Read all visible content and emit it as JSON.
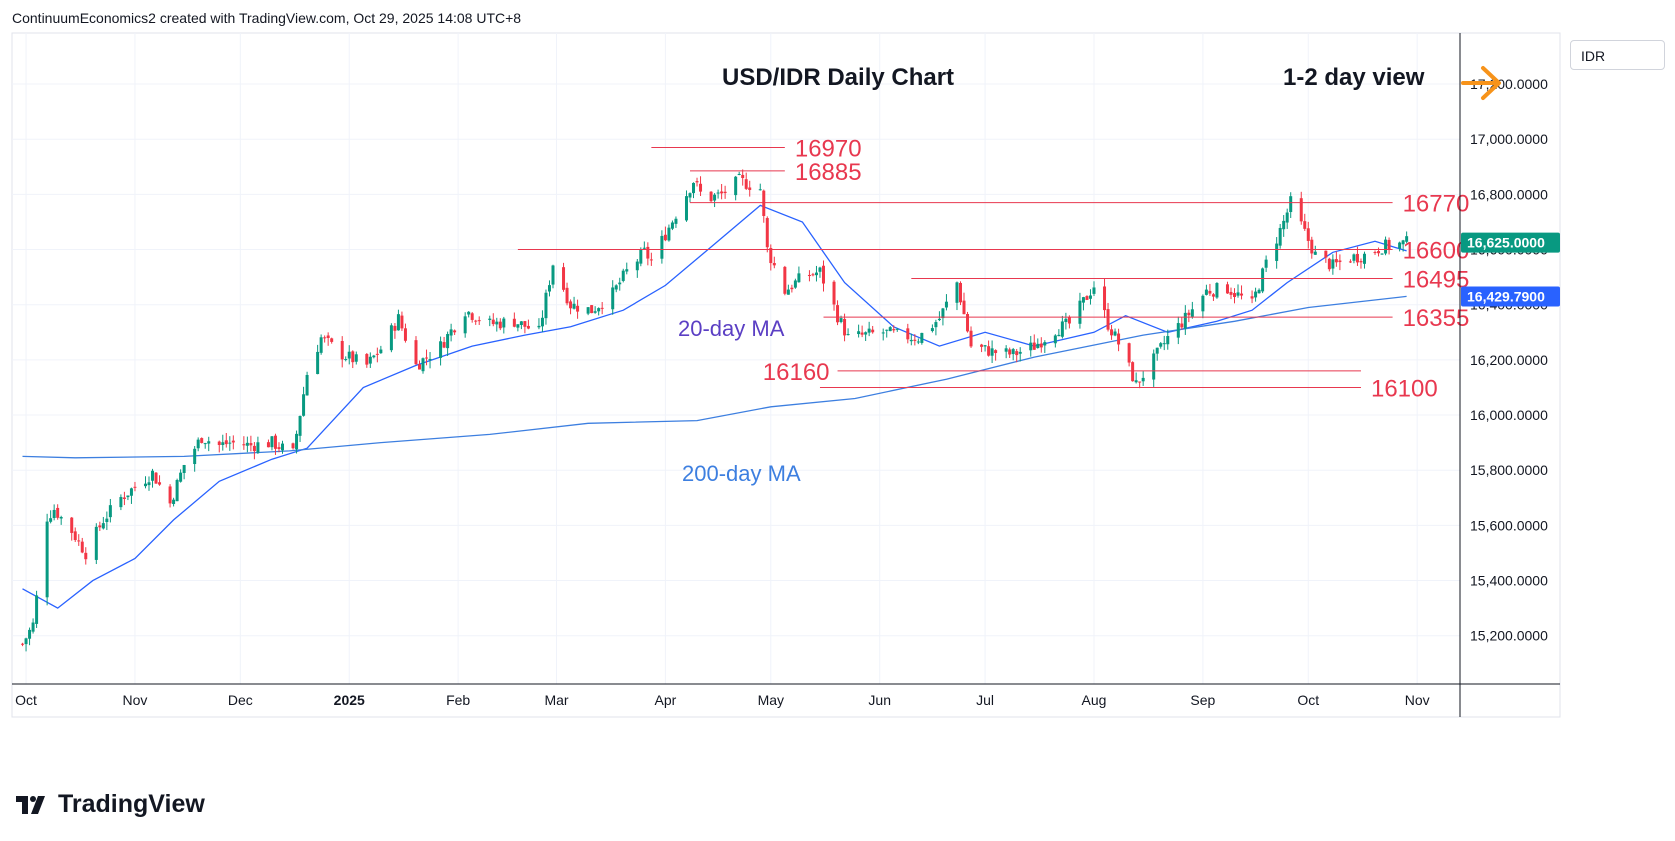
{
  "header": {
    "credit": "ContinuumEconomics2 created with TradingView.com, Oct 29, 2025 14:08 UTC+8"
  },
  "toolbar": {
    "currency": "IDR"
  },
  "logo": {
    "name": "TradingView",
    "icon": "tradingview-logo-icon"
  },
  "colors": {
    "up": "#089981",
    "down": "#f23645",
    "level": "#e8384f",
    "ma20": "#2962ff",
    "ma200": "#3d7fe0",
    "ma20_label": "#5b3fc4",
    "arrow": "#f7931a",
    "badge_current": "#089981",
    "badge_ma": "#2962ff"
  },
  "chart_data": {
    "type": "candlestick",
    "title": "USD/IDR Daily Chart",
    "view_note": "1-2 day view",
    "arrow_icon": "arrow-right-icon",
    "y_ticks": [
      15200,
      15400,
      15600,
      15800,
      16000,
      16200,
      16400,
      16600,
      16800,
      17000,
      17200
    ],
    "y_tick_labels": [
      "15,200.0000",
      "15,400.0000",
      "15,600.0000",
      "15,800.0000",
      "16,000.0000",
      "16,200.0000",
      "16,400.0000",
      "16,600.0000",
      "16,800.0000",
      "17,000.0000",
      "17,200.0000"
    ],
    "x_labels": [
      {
        "label": "Oct",
        "date": "2024-10-01",
        "bold": false
      },
      {
        "label": "Nov",
        "date": "2024-11-01",
        "bold": false
      },
      {
        "label": "Dec",
        "date": "2024-12-01",
        "bold": false
      },
      {
        "label": "2025",
        "date": "2025-01-01",
        "bold": true
      },
      {
        "label": "Feb",
        "date": "2025-02-01",
        "bold": false
      },
      {
        "label": "Mar",
        "date": "2025-03-01",
        "bold": false
      },
      {
        "label": "Apr",
        "date": "2025-04-01",
        "bold": false
      },
      {
        "label": "May",
        "date": "2025-05-01",
        "bold": false
      },
      {
        "label": "Jun",
        "date": "2025-06-01",
        "bold": false
      },
      {
        "label": "Jul",
        "date": "2025-07-01",
        "bold": false
      },
      {
        "label": "Aug",
        "date": "2025-08-01",
        "bold": false
      },
      {
        "label": "Sep",
        "date": "2025-09-01",
        "bold": false
      },
      {
        "label": "Oct",
        "date": "2025-10-01",
        "bold": false
      },
      {
        "label": "Nov",
        "date": "2025-11-01",
        "bold": false
      }
    ],
    "levels": [
      {
        "value": 16970,
        "label": "16970",
        "from": "2025-03-28",
        "to": "2025-05-05"
      },
      {
        "value": 16885,
        "label": "16885",
        "from": "2025-04-08",
        "to": "2025-05-05"
      },
      {
        "value": 16770,
        "label": "16770",
        "from": "2025-04-08",
        "to": "2025-10-25"
      },
      {
        "value": 16600,
        "label": "16600",
        "from": "2025-02-18",
        "to": "2025-10-25"
      },
      {
        "value": 16495,
        "label": "16495",
        "from": "2025-06-10",
        "to": "2025-10-25"
      },
      {
        "value": 16355,
        "label": "16355",
        "from": "2025-05-16",
        "to": "2025-10-25"
      },
      {
        "value": 16160,
        "label": "16160",
        "from": "2025-05-20",
        "to": "2025-10-16"
      },
      {
        "value": 16100,
        "label": "16100",
        "from": "2025-05-15",
        "to": "2025-10-16"
      }
    ],
    "annotations": [
      {
        "text": "20-day MA",
        "series": "ma20"
      },
      {
        "text": "200-day MA",
        "series": "ma200"
      }
    ],
    "price_badges": [
      {
        "label": "16,625.0000",
        "value": 16625,
        "kind": "current"
      },
      {
        "label": "16,429.7900",
        "value": 16429.79,
        "kind": "ma200"
      }
    ],
    "price_path": [
      [
        "2024-09-30",
        15170
      ],
      [
        "2024-10-03",
        15240
      ],
      [
        "2024-10-07",
        15630
      ],
      [
        "2024-10-09",
        15660
      ],
      [
        "2024-10-14",
        15580
      ],
      [
        "2024-10-18",
        15500
      ],
      [
        "2024-10-23",
        15620
      ],
      [
        "2024-10-28",
        15700
      ],
      [
        "2024-11-01",
        15740
      ],
      [
        "2024-11-06",
        15790
      ],
      [
        "2024-11-11",
        15680
      ],
      [
        "2024-11-15",
        15820
      ],
      [
        "2024-11-20",
        15920
      ],
      [
        "2024-11-25",
        15890
      ],
      [
        "2024-11-28",
        15900
      ],
      [
        "2024-12-04",
        15890
      ],
      [
        "2024-12-10",
        15900
      ],
      [
        "2024-12-16",
        15860
      ],
      [
        "2024-12-20",
        16150
      ],
      [
        "2024-12-24",
        16280
      ],
      [
        "2024-12-30",
        16220
      ],
      [
        "2025-01-06",
        16180
      ],
      [
        "2025-01-10",
        16240
      ],
      [
        "2025-01-15",
        16350
      ],
      [
        "2025-01-20",
        16180
      ],
      [
        "2025-01-27",
        16250
      ],
      [
        "2025-02-03",
        16380
      ],
      [
        "2025-02-10",
        16330
      ],
      [
        "2025-02-17",
        16340
      ],
      [
        "2025-02-24",
        16300
      ],
      [
        "2025-02-28",
        16550
      ],
      [
        "2025-03-05",
        16400
      ],
      [
        "2025-03-11",
        16380
      ],
      [
        "2025-03-17",
        16440
      ],
      [
        "2025-03-21",
        16520
      ],
      [
        "2025-03-26",
        16590
      ],
      [
        "2025-03-28",
        16560
      ],
      [
        "2025-04-09",
        16850
      ],
      [
        "2025-04-12",
        16780
      ],
      [
        "2025-04-17",
        16800
      ],
      [
        "2025-04-22",
        16850
      ],
      [
        "2025-04-28",
        16820
      ],
      [
        "2025-04-30",
        16600
      ],
      [
        "2025-05-05",
        16450
      ],
      [
        "2025-05-10",
        16500
      ],
      [
        "2025-05-15",
        16520
      ],
      [
        "2025-05-20",
        16360
      ],
      [
        "2025-05-23",
        16280
      ],
      [
        "2025-06-02",
        16300
      ],
      [
        "2025-06-06",
        16290
      ],
      [
        "2025-06-12",
        16280
      ],
      [
        "2025-06-18",
        16350
      ],
      [
        "2025-06-23",
        16480
      ],
      [
        "2025-06-27",
        16250
      ],
      [
        "2025-07-03",
        16230
      ],
      [
        "2025-07-09",
        16220
      ],
      [
        "2025-07-15",
        16250
      ],
      [
        "2025-07-21",
        16310
      ],
      [
        "2025-07-25",
        16330
      ],
      [
        "2025-08-01",
        16470
      ],
      [
        "2025-08-05",
        16330
      ],
      [
        "2025-08-08",
        16260
      ],
      [
        "2025-08-13",
        16110
      ],
      [
        "2025-08-18",
        16200
      ],
      [
        "2025-08-22",
        16280
      ],
      [
        "2025-08-27",
        16350
      ],
      [
        "2025-09-02",
        16450
      ],
      [
        "2025-09-08",
        16460
      ],
      [
        "2025-09-15",
        16400
      ],
      [
        "2025-09-19",
        16550
      ],
      [
        "2025-09-24",
        16700
      ],
      [
        "2025-09-26",
        16770
      ],
      [
        "2025-09-30",
        16660
      ],
      [
        "2025-10-03",
        16580
      ],
      [
        "2025-10-08",
        16540
      ],
      [
        "2025-10-13",
        16570
      ],
      [
        "2025-10-17",
        16580
      ],
      [
        "2025-10-22",
        16610
      ],
      [
        "2025-10-27",
        16620
      ],
      [
        "2025-10-29",
        16625
      ]
    ],
    "ma20": [
      [
        "2024-09-30",
        15370
      ],
      [
        "2024-10-10",
        15300
      ],
      [
        "2024-10-20",
        15400
      ],
      [
        "2024-11-01",
        15480
      ],
      [
        "2024-11-12",
        15620
      ],
      [
        "2024-11-25",
        15760
      ],
      [
        "2024-12-10",
        15840
      ],
      [
        "2024-12-20",
        15880
      ],
      [
        "2025-01-05",
        16100
      ],
      [
        "2025-01-20",
        16180
      ],
      [
        "2025-02-05",
        16250
      ],
      [
        "2025-02-20",
        16290
      ],
      [
        "2025-03-05",
        16320
      ],
      [
        "2025-03-20",
        16380
      ],
      [
        "2025-04-01",
        16470
      ],
      [
        "2025-04-15",
        16620
      ],
      [
        "2025-04-28",
        16760
      ],
      [
        "2025-05-10",
        16700
      ],
      [
        "2025-05-22",
        16480
      ],
      [
        "2025-06-05",
        16320
      ],
      [
        "2025-06-18",
        16250
      ],
      [
        "2025-07-01",
        16300
      ],
      [
        "2025-07-15",
        16250
      ],
      [
        "2025-08-01",
        16300
      ],
      [
        "2025-08-10",
        16360
      ],
      [
        "2025-08-22",
        16300
      ],
      [
        "2025-09-05",
        16340
      ],
      [
        "2025-09-15",
        16380
      ],
      [
        "2025-09-25",
        16480
      ],
      [
        "2025-10-08",
        16590
      ],
      [
        "2025-10-20",
        16630
      ],
      [
        "2025-10-29",
        16595
      ]
    ],
    "ma200": [
      [
        "2024-09-30",
        15850
      ],
      [
        "2024-10-15",
        15845
      ],
      [
        "2024-11-15",
        15850
      ],
      [
        "2024-12-15",
        15870
      ],
      [
        "2025-01-10",
        15900
      ],
      [
        "2025-02-10",
        15930
      ],
      [
        "2025-03-10",
        15970
      ],
      [
        "2025-04-10",
        15980
      ],
      [
        "2025-05-01",
        16030
      ],
      [
        "2025-05-25",
        16060
      ],
      [
        "2025-06-20",
        16130
      ],
      [
        "2025-07-15",
        16210
      ],
      [
        "2025-08-15",
        16290
      ],
      [
        "2025-09-10",
        16340
      ],
      [
        "2025-10-01",
        16390
      ],
      [
        "2025-10-29",
        16430
      ]
    ]
  }
}
